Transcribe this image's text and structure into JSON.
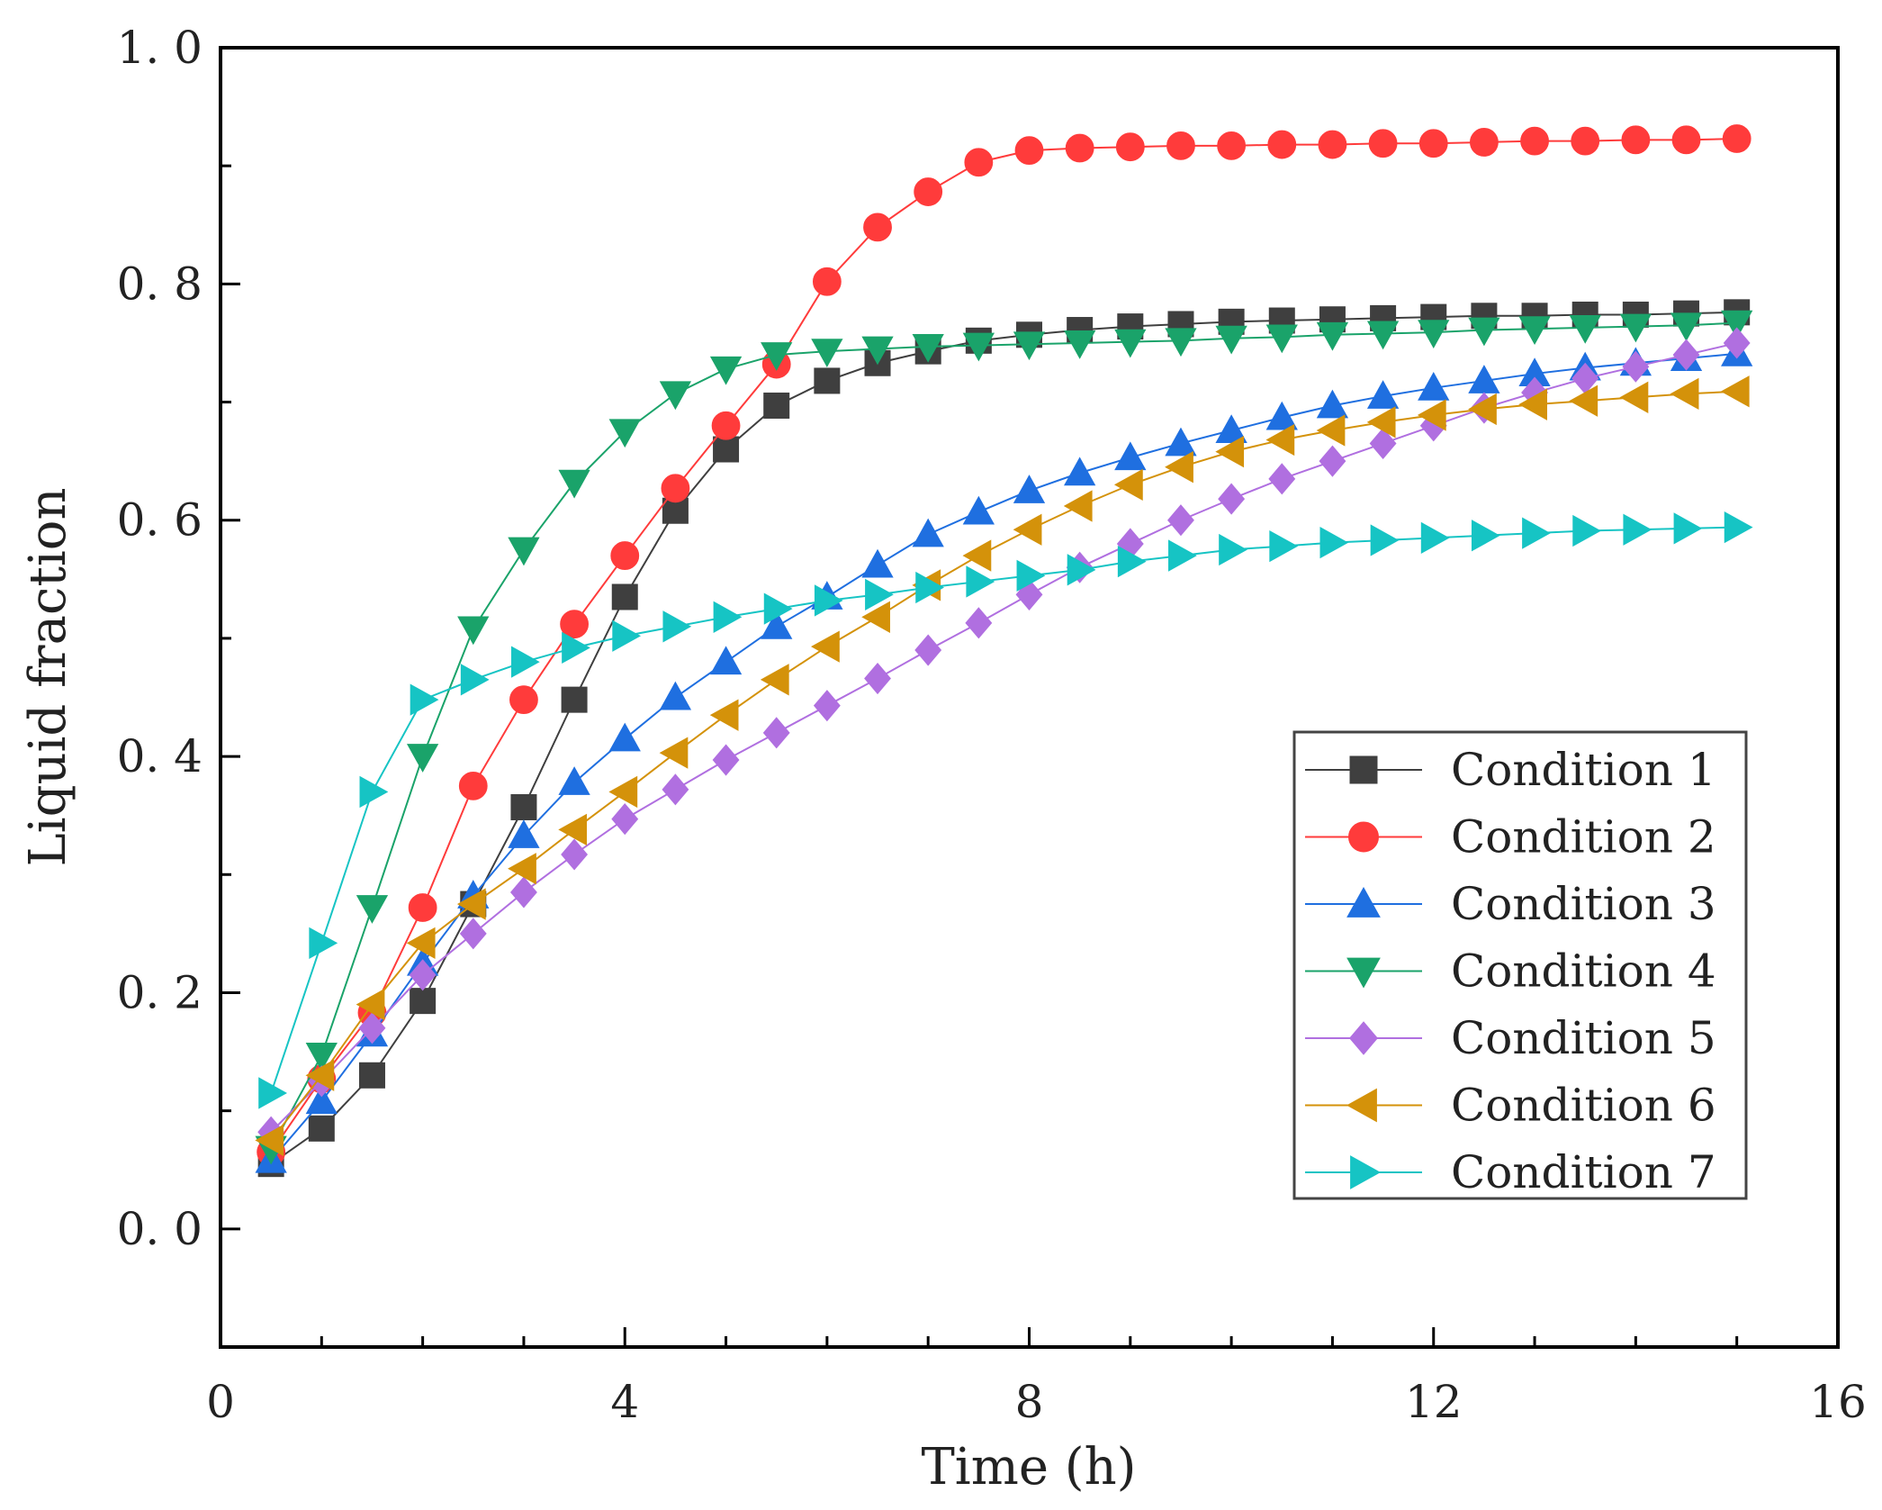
{
  "chart_data": {
    "type": "line",
    "title": "",
    "xlabel": "Time (h)",
    "ylabel": "Liquid fraction",
    "xlim": [
      0,
      16
    ],
    "ylim": [
      -0.1,
      1.0
    ],
    "xticks": [
      0,
      4,
      8,
      12,
      16
    ],
    "xtick_labels": [
      "0",
      "4",
      "8",
      "12",
      "16"
    ],
    "yticks": [
      0.0,
      0.2,
      0.4,
      0.6,
      0.8,
      1.0
    ],
    "ytick_labels": [
      "0. 0",
      "0. 2",
      "0. 4",
      "0. 6",
      "0. 8",
      "1. 0"
    ],
    "grid": false,
    "legend_position": "bottom-right",
    "x": [
      0.5,
      1,
      1.5,
      2,
      2.5,
      3,
      3.5,
      4,
      4.5,
      5,
      5.5,
      6,
      6.5,
      7,
      7.5,
      8,
      8.5,
      9,
      9.5,
      10,
      10.5,
      11,
      11.5,
      12,
      12.5,
      13,
      13.5,
      14,
      14.5,
      15
    ],
    "series": [
      {
        "name": "Condition 1",
        "color": "#3f3f3f",
        "marker": "square",
        "values": [
          0.055,
          0.085,
          0.13,
          0.193,
          0.275,
          0.357,
          0.448,
          0.535,
          0.608,
          0.66,
          0.697,
          0.718,
          0.733,
          0.743,
          0.752,
          0.757,
          0.761,
          0.764,
          0.766,
          0.768,
          0.769,
          0.77,
          0.771,
          0.772,
          0.773,
          0.773,
          0.774,
          0.774,
          0.775,
          0.776
        ]
      },
      {
        "name": "Condition 2",
        "color": "#ff3b3b",
        "marker": "circle",
        "values": [
          0.065,
          0.127,
          0.183,
          0.272,
          0.375,
          0.448,
          0.512,
          0.57,
          0.627,
          0.68,
          0.732,
          0.802,
          0.848,
          0.878,
          0.903,
          0.913,
          0.915,
          0.916,
          0.917,
          0.917,
          0.918,
          0.918,
          0.919,
          0.919,
          0.92,
          0.921,
          0.921,
          0.922,
          0.922,
          0.923
        ]
      },
      {
        "name": "Condition 3",
        "color": "#1f6fe0",
        "marker": "triangle-up",
        "values": [
          0.058,
          0.108,
          0.165,
          0.225,
          0.282,
          0.333,
          0.378,
          0.415,
          0.45,
          0.48,
          0.51,
          0.535,
          0.562,
          0.588,
          0.607,
          0.625,
          0.64,
          0.653,
          0.665,
          0.676,
          0.687,
          0.697,
          0.705,
          0.712,
          0.718,
          0.724,
          0.729,
          0.733,
          0.737,
          0.741
        ]
      },
      {
        "name": "Condition 4",
        "color": "#1aa36a",
        "marker": "triangle-down",
        "values": [
          0.068,
          0.147,
          0.272,
          0.4,
          0.508,
          0.575,
          0.632,
          0.675,
          0.707,
          0.728,
          0.74,
          0.743,
          0.745,
          0.747,
          0.748,
          0.749,
          0.75,
          0.751,
          0.752,
          0.754,
          0.755,
          0.757,
          0.758,
          0.759,
          0.761,
          0.762,
          0.763,
          0.764,
          0.765,
          0.767
        ]
      },
      {
        "name": "Condition 5",
        "color": "#b06fe0",
        "marker": "diamond",
        "values": [
          0.082,
          0.125,
          0.17,
          0.215,
          0.25,
          0.285,
          0.317,
          0.347,
          0.372,
          0.397,
          0.42,
          0.443,
          0.466,
          0.49,
          0.513,
          0.537,
          0.56,
          0.58,
          0.6,
          0.618,
          0.635,
          0.65,
          0.665,
          0.68,
          0.695,
          0.708,
          0.72,
          0.73,
          0.74,
          0.75
        ]
      },
      {
        "name": "Condition 6",
        "color": "#d4920a",
        "marker": "triangle-left",
        "values": [
          0.075,
          0.13,
          0.19,
          0.242,
          0.275,
          0.305,
          0.338,
          0.37,
          0.403,
          0.435,
          0.465,
          0.493,
          0.518,
          0.545,
          0.57,
          0.592,
          0.612,
          0.63,
          0.645,
          0.658,
          0.668,
          0.676,
          0.683,
          0.689,
          0.694,
          0.698,
          0.701,
          0.704,
          0.707,
          0.709
        ]
      },
      {
        "name": "Condition 7",
        "color": "#16c4c4",
        "marker": "triangle-right",
        "values": [
          0.115,
          0.242,
          0.37,
          0.448,
          0.465,
          0.48,
          0.492,
          0.502,
          0.51,
          0.518,
          0.525,
          0.532,
          0.537,
          0.543,
          0.548,
          0.553,
          0.558,
          0.565,
          0.57,
          0.575,
          0.578,
          0.581,
          0.583,
          0.585,
          0.587,
          0.589,
          0.591,
          0.592,
          0.593,
          0.594
        ]
      }
    ]
  }
}
